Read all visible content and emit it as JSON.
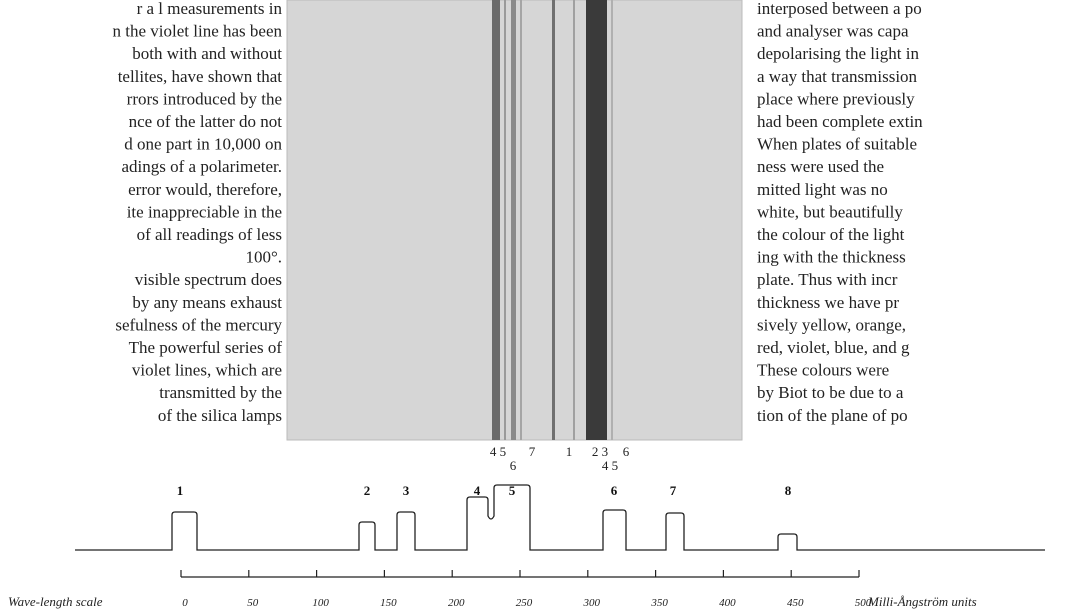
{
  "left_column": {
    "lines": [
      "r a l  measurements  in",
      "n the violet line has been",
      "both with and without",
      "tellites, have shown that",
      "rrors introduced by the",
      "nce of the latter do not",
      "d one part in 10,000 on",
      "adings of a polarimeter.",
      "error would, therefore,",
      "ite inappreciable in the",
      "of all readings of less",
      "100°.",
      "visible spectrum does",
      "by any means exhaust",
      "sefulness of the mercury",
      "The powerful series of",
      "violet lines, which are",
      "transmitted  by  the",
      "of  the  silica  lamps"
    ]
  },
  "right_column": {
    "lines": [
      "interposed between a po",
      "and analyser was capa",
      "depolarising the light in",
      "a way that transmission",
      "place where previously",
      "had been complete extin",
      "When plates of suitable",
      "ness  were  used  the",
      "mitted light was no",
      "white, but beautifully",
      "the colour of the light",
      "ing with the thickness",
      "plate.  Thus with incr",
      "thickness we have pr",
      "sively yellow, orange,",
      "red, violet, blue, and g",
      "These colours were",
      "by Biot to be due to a",
      "tion of the plane of po"
    ]
  },
  "photo_labels": {
    "row1": [
      "4 5",
      "7",
      "1",
      "2 3",
      "6"
    ],
    "row2": [
      "6",
      "4 5"
    ]
  },
  "diagram": {
    "peak_labels": [
      "1",
      "2",
      "3",
      "4",
      "5",
      "6",
      "7",
      "8"
    ]
  },
  "scale": {
    "title": "Wave-length scale",
    "ticks": [
      "0",
      "50",
      "100",
      "150",
      "200",
      "250",
      "300",
      "350",
      "400",
      "450",
      "500"
    ],
    "unit": "Milli-Ångström units"
  }
}
